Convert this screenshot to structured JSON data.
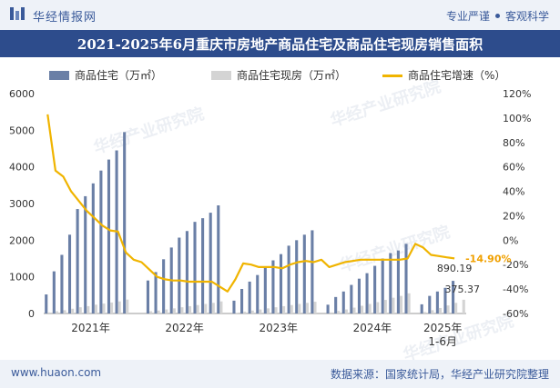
{
  "header": {
    "brand": "华经情报网",
    "tagline_left": "专业严谨",
    "tagline_right": "客观科学"
  },
  "title": "2021-2025年6月重庆市房地产商品住宅及商品住宅现房销售面积",
  "footer": {
    "site": "www.huaon.com",
    "source": "数据来源：国家统计局，华经产业研究院整理"
  },
  "watermark": "华经产业研究院",
  "colors": {
    "series_bar1": "#6a7fa6",
    "series_bar2": "#d4d4d4",
    "series_line": "#f0b400",
    "label_highlight": "#f0a000",
    "title_bg": "#2d4c8c"
  },
  "chart_data": {
    "type": "bar",
    "categories": [
      "2021-01",
      "2021-02",
      "2021-03",
      "2021-04",
      "2021-05",
      "2021-06",
      "2021-07",
      "2021-08",
      "2021-09",
      "2021-10",
      "2021-11",
      "2021-12",
      "2022-01",
      "2022-02",
      "2022-03",
      "2022-04",
      "2022-05",
      "2022-06",
      "2022-07",
      "2022-08",
      "2022-09",
      "2022-10",
      "2022-11",
      "2022-12",
      "2023-01",
      "2023-02",
      "2023-03",
      "2023-04",
      "2023-05",
      "2023-06",
      "2023-07",
      "2023-08",
      "2023-09",
      "2023-10",
      "2023-11",
      "2023-12",
      "2024-01",
      "2024-02",
      "2024-03",
      "2024-04",
      "2024-05",
      "2024-06",
      "2024-07",
      "2024-08",
      "2024-09",
      "2024-10",
      "2024-11",
      "2024-12",
      "2025-01",
      "2025-02",
      "2025-03",
      "2025-04",
      "2025-05",
      "2025-06"
    ],
    "x_tick_labels": [
      "2021年",
      "2022年",
      "2023年",
      "2024年",
      "2025年\n1-6月"
    ],
    "series": [
      {
        "name": "商品住宅（万㎡）",
        "axis": "left",
        "values": [
          520,
          1150,
          1600,
          2150,
          2850,
          3200,
          3550,
          3900,
          4200,
          4450,
          4950,
          null,
          null,
          900,
          1130,
          1480,
          1800,
          2070,
          2250,
          2500,
          2600,
          2750,
          2950,
          null,
          350,
          670,
          870,
          1050,
          1250,
          1450,
          1620,
          1850,
          2000,
          2150,
          2270,
          null,
          240,
          450,
          600,
          780,
          950,
          1100,
          1300,
          1500,
          1650,
          1720,
          1900,
          null,
          250,
          480,
          600,
          700,
          890.19,
          null
        ]
      },
      {
        "name": "商品住宅现房（万㎡）",
        "axis": "left",
        "values": [
          30,
          60,
          90,
          130,
          170,
          200,
          240,
          270,
          300,
          330,
          380,
          null,
          null,
          60,
          80,
          110,
          140,
          170,
          200,
          230,
          260,
          290,
          330,
          null,
          20,
          50,
          80,
          110,
          140,
          170,
          200,
          230,
          260,
          290,
          320,
          null,
          30,
          70,
          110,
          160,
          210,
          260,
          310,
          370,
          430,
          480,
          550,
          null,
          40,
          90,
          150,
          220,
          290,
          375.37
        ]
      },
      {
        "name": "商品住宅增速（%）",
        "axis": "right",
        "type": "line",
        "values": [
          103,
          57,
          52,
          40,
          32,
          24,
          18,
          12,
          8,
          7,
          -10,
          -16,
          -18,
          -24,
          -30,
          -32,
          -33,
          -33,
          -34,
          -34,
          -34,
          -34,
          -38,
          -42,
          -32,
          -19,
          -20,
          -22,
          -22,
          -22,
          -23,
          -20,
          -18,
          -17,
          -18,
          -16,
          -22,
          -20,
          -18,
          -17,
          -16,
          -16,
          -16,
          -16,
          -16,
          -16,
          -15,
          -3,
          -6,
          -12,
          -13,
          -14,
          -14.9,
          null
        ]
      }
    ],
    "yleft_ticks": [
      0,
      1000,
      2000,
      3000,
      4000,
      5000,
      6000
    ],
    "yright_ticks": [
      "-60%",
      "-40%",
      "-20%",
      "0%",
      "20%",
      "40%",
      "60%",
      "80%",
      "100%",
      "120%"
    ],
    "ylim_left": [
      0,
      6000
    ],
    "ylim_right": [
      -60,
      120
    ],
    "annotations": [
      {
        "text": "-14.90%",
        "series": 2,
        "index": 52
      },
      {
        "text": "890.19",
        "series": 0,
        "index": 52
      },
      {
        "text": "375.37",
        "series": 1,
        "index": 53
      }
    ],
    "legend_position": "top",
    "grid": false
  }
}
